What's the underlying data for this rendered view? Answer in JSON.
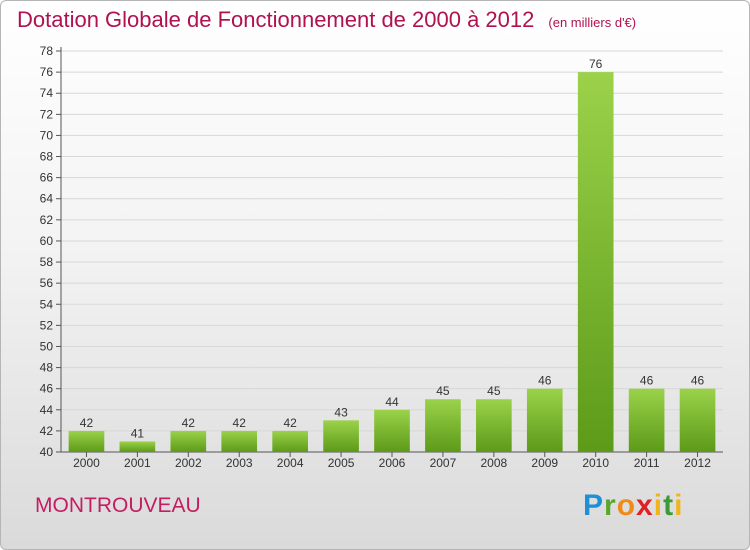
{
  "title": {
    "main": "Dotation Globale de Fonctionnement de 2000 à 2012",
    "unit": "(en milliers d'€)"
  },
  "commune": "MONTROUVEAU",
  "logo": {
    "text": "Proxiti"
  },
  "colors": {
    "title": "#b0124f",
    "bar_light": "#9bd24a",
    "bar_dark": "#5c9a18"
  },
  "chart_data": {
    "type": "bar",
    "categories": [
      "2000",
      "2001",
      "2002",
      "2003",
      "2004",
      "2005",
      "2006",
      "2007",
      "2008",
      "2009",
      "2010",
      "2011",
      "2012"
    ],
    "values": [
      42,
      41,
      42,
      42,
      42,
      43,
      44,
      45,
      45,
      46,
      76,
      46,
      46
    ],
    "title": "Dotation Globale de Fonctionnement de 2000 à 2012",
    "subtitle": "(en milliers d'€)",
    "xlabel": "",
    "ylabel": "",
    "ylim": [
      40,
      78
    ],
    "yticks": [
      40,
      42,
      44,
      46,
      48,
      50,
      52,
      54,
      56,
      58,
      60,
      62,
      64,
      66,
      68,
      70,
      72,
      74,
      76,
      78
    ],
    "grid": true,
    "legend": "none"
  }
}
